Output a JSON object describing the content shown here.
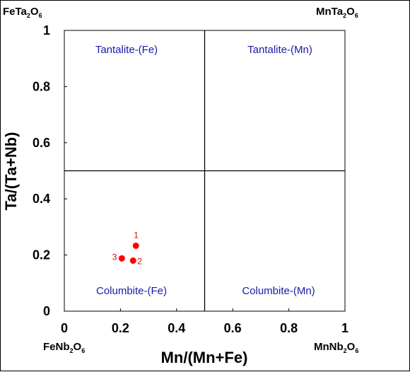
{
  "corners": {
    "top_left": {
      "base": "FeTa",
      "sub1": "2",
      "mid": "O",
      "sub2": "6"
    },
    "top_right": {
      "base": "MnTa",
      "sub1": "2",
      "mid": "O",
      "sub2": "6"
    },
    "bottom_left": {
      "base": "FeNb",
      "sub1": "2",
      "mid": "O",
      "sub2": "6"
    },
    "bottom_right": {
      "base": "MnNb",
      "sub1": "2",
      "mid": "O",
      "sub2": "6"
    }
  },
  "fields": {
    "top_left": "Tantalite-(Fe)",
    "top_right": "Tantalite-(Mn)",
    "bottom_left": "Columbite-(Fe)",
    "bottom_right": "Columbite-(Mn)"
  },
  "colors": {
    "field_text": "#1a1aa6",
    "point": "#ff0000",
    "point_label": "#e00000",
    "axes": "#000000"
  },
  "chart_data": {
    "type": "scatter",
    "xlabel": "Mn/(Mn+Fe)",
    "ylabel": "Ta/(Ta+Nb)",
    "xlim": [
      0,
      1
    ],
    "ylim": [
      0,
      1
    ],
    "x_ticks": [
      0,
      0.2,
      0.4,
      0.6,
      0.8,
      1
    ],
    "y_ticks": [
      0,
      0.2,
      0.4,
      0.6,
      0.8,
      1
    ],
    "x_tick_labels": [
      "0",
      "0.2",
      "0.4",
      "0.6",
      "0.8",
      "1"
    ],
    "y_tick_labels": [
      "0",
      "0.2",
      "0.4",
      "0.6",
      "0.8",
      "1"
    ],
    "dividers": {
      "x": 0.5,
      "y": 0.5
    },
    "grid": false,
    "series": [
      {
        "points": [
          {
            "label": "1",
            "x": 0.255,
            "y": 0.233
          },
          {
            "label": "2",
            "x": 0.245,
            "y": 0.18
          },
          {
            "label": "3",
            "x": 0.205,
            "y": 0.188
          }
        ]
      }
    ]
  }
}
